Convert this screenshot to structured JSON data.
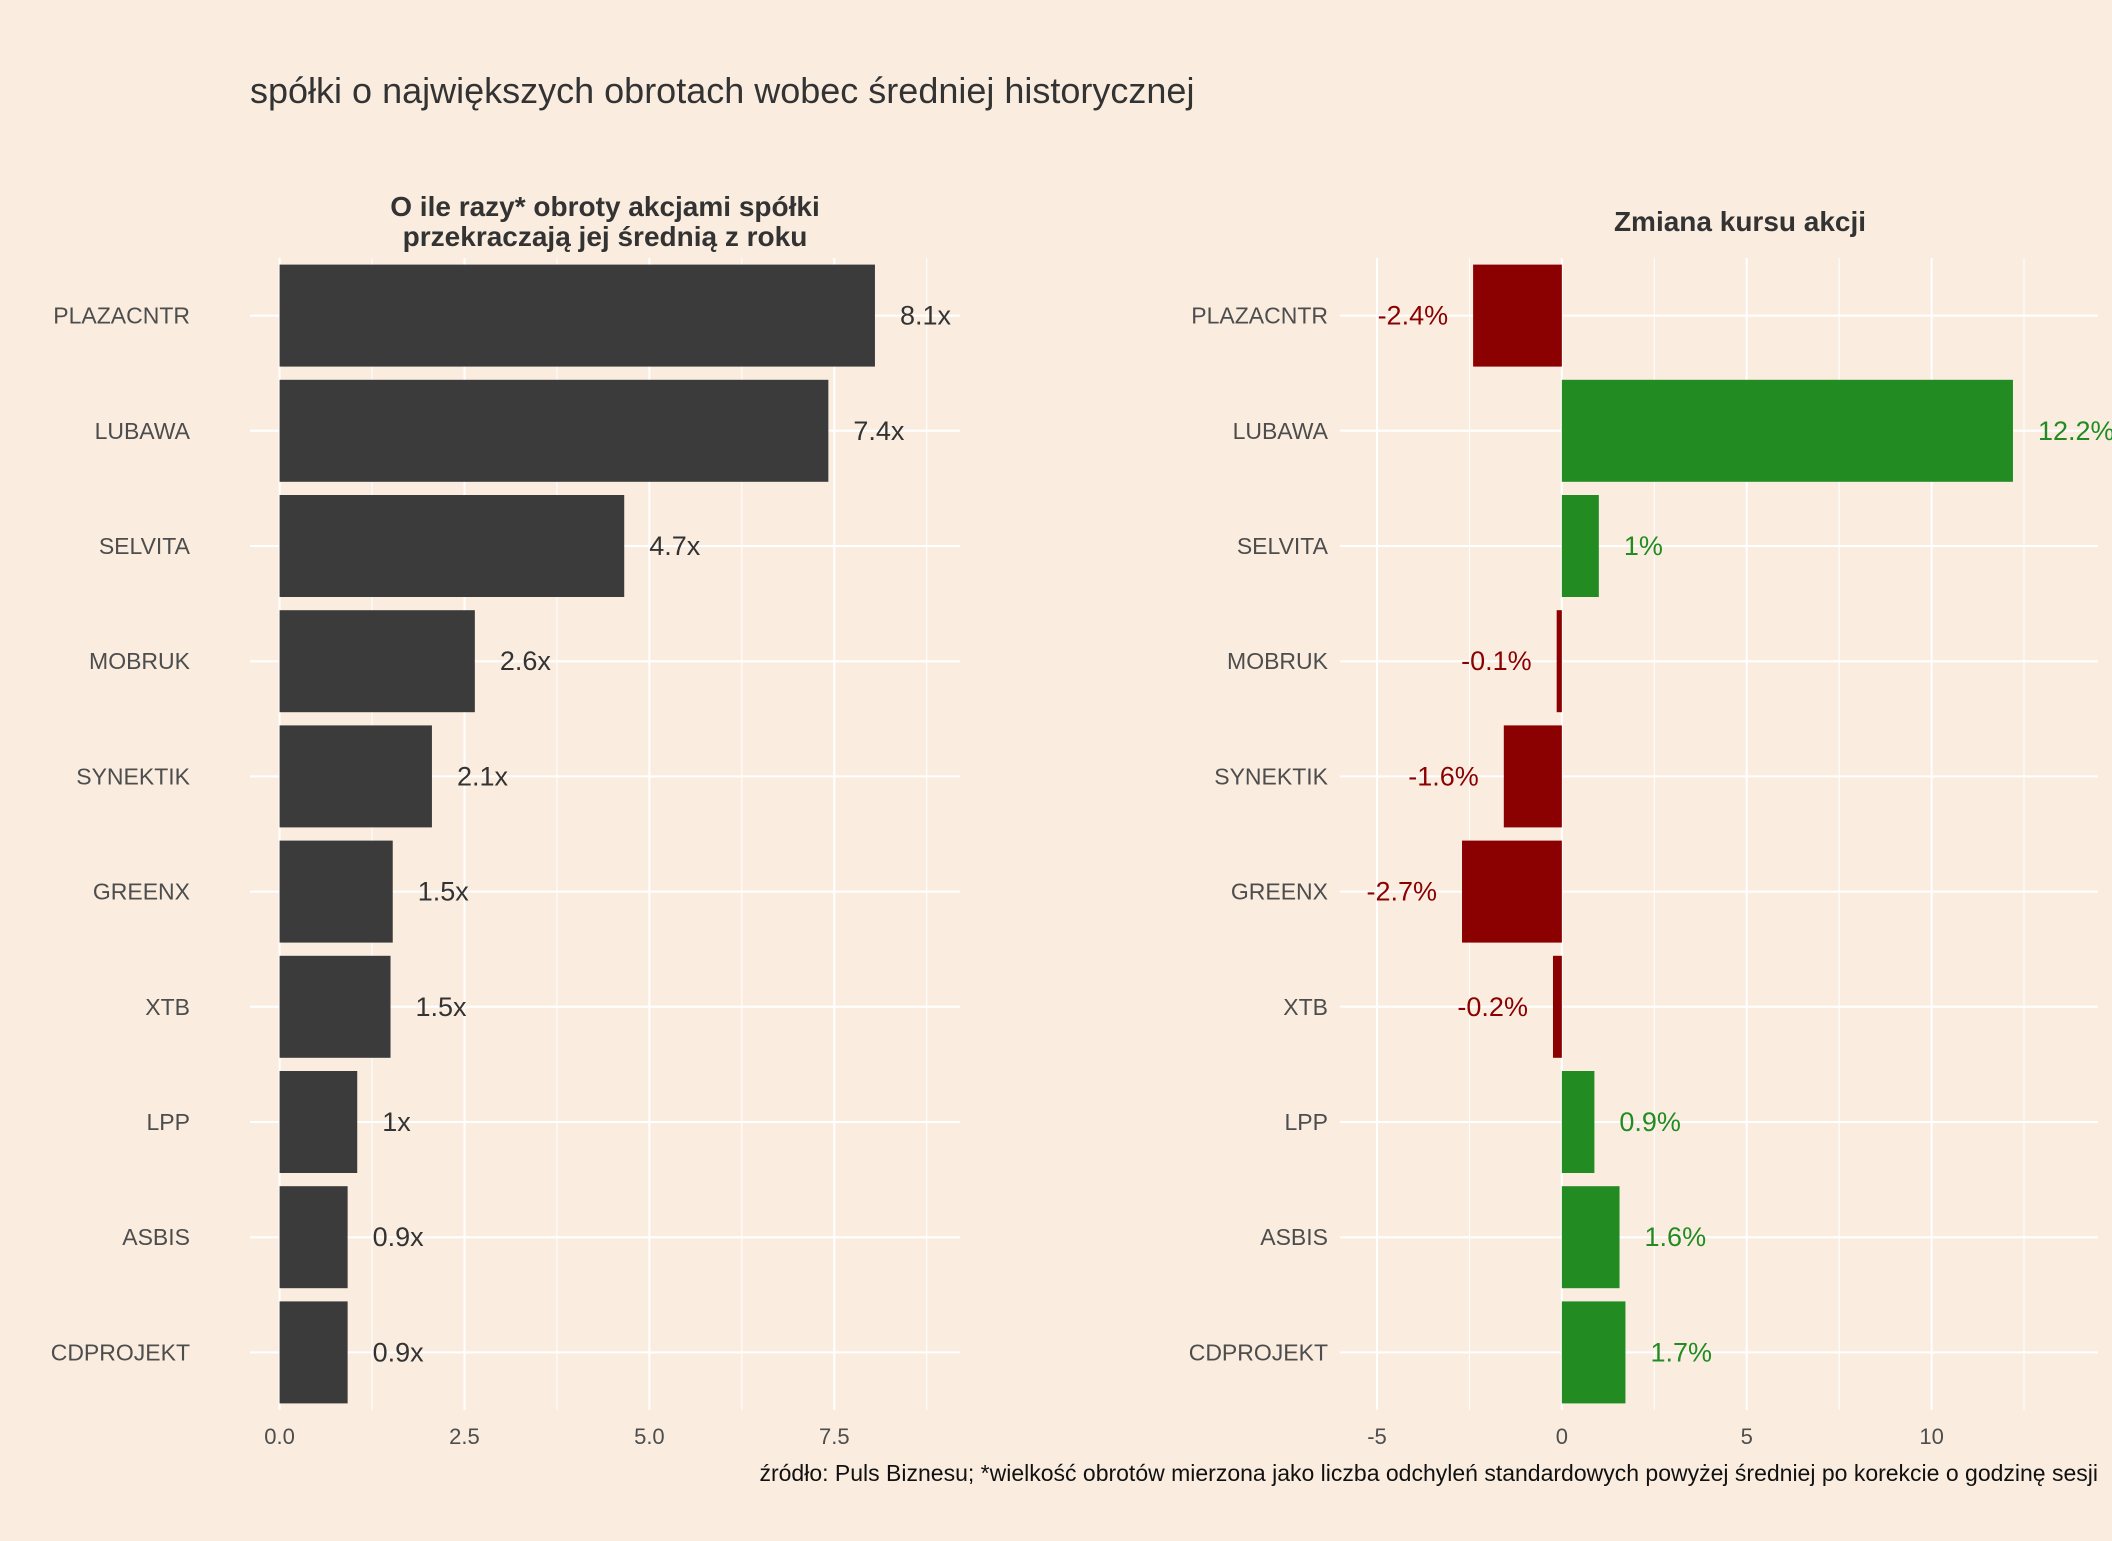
{
  "title": "spółki o największych obrotach wobec średniej historycznej",
  "caption": "źródło: Puls Biznesu; *wielkość obrotów mierzona jako liczba odchyleń standardowych powyżej średniej po korekcie o godzinę sesji",
  "colors": {
    "background": "#faede0",
    "grid": "#ffffff",
    "bar_left": "#3b3b3b",
    "positive": "#228b22",
    "negative": "#8b0000",
    "text": "#333333",
    "axis_text": "#4d4d4d"
  },
  "chart_data": [
    {
      "type": "bar",
      "orientation": "horizontal",
      "title_lines": [
        "O ile razy* obroty akcjami spółki",
        "przekraczają jej średnią z roku"
      ],
      "categories": [
        "PLAZACNTR",
        "LUBAWA",
        "SELVITA",
        "MOBRUK",
        "SYNEKTIK",
        "GREENX",
        "XTB",
        "LPP",
        "ASBIS",
        "CDPROJEKT"
      ],
      "values": [
        8.05,
        7.42,
        4.66,
        2.64,
        2.06,
        1.53,
        1.5,
        1.05,
        0.92,
        0.92
      ],
      "labels": [
        "8.1x",
        "7.4x",
        "4.7x",
        "2.6x",
        "2.1x",
        "1.5x",
        "1.5x",
        "1x",
        "0.9x",
        "0.9x"
      ],
      "xlim": [
        -0.4,
        9.2
      ],
      "xticks": [
        0,
        2.5,
        5,
        7.5
      ],
      "xtick_labels": [
        "0.0",
        "2.5",
        "5.0",
        "7.5"
      ],
      "minor_grid": [
        1.25,
        3.75,
        6.25,
        8.75
      ]
    },
    {
      "type": "bar",
      "orientation": "horizontal",
      "title_lines": [
        "Zmiana kursu akcji"
      ],
      "categories": [
        "PLAZACNTR",
        "LUBAWA",
        "SELVITA",
        "MOBRUK",
        "SYNEKTIK",
        "GREENX",
        "XTB",
        "LPP",
        "ASBIS",
        "CDPROJEKT"
      ],
      "values": [
        -2.4,
        12.2,
        1.0,
        -0.14,
        -1.57,
        -2.7,
        -0.24,
        0.88,
        1.56,
        1.72
      ],
      "labels": [
        "-2.4%",
        "12.2%",
        "1%",
        "-0.1%",
        "-1.6%",
        "-2.7%",
        "-0.2%",
        "0.9%",
        "1.6%",
        "1.7%"
      ],
      "xlim": [
        -6.0,
        14.5
      ],
      "xticks": [
        -5,
        0,
        5,
        10
      ],
      "xtick_labels": [
        "-5",
        "0",
        "5",
        "10"
      ],
      "minor_grid": [
        -2.5,
        2.5,
        7.5,
        12.5
      ]
    }
  ]
}
